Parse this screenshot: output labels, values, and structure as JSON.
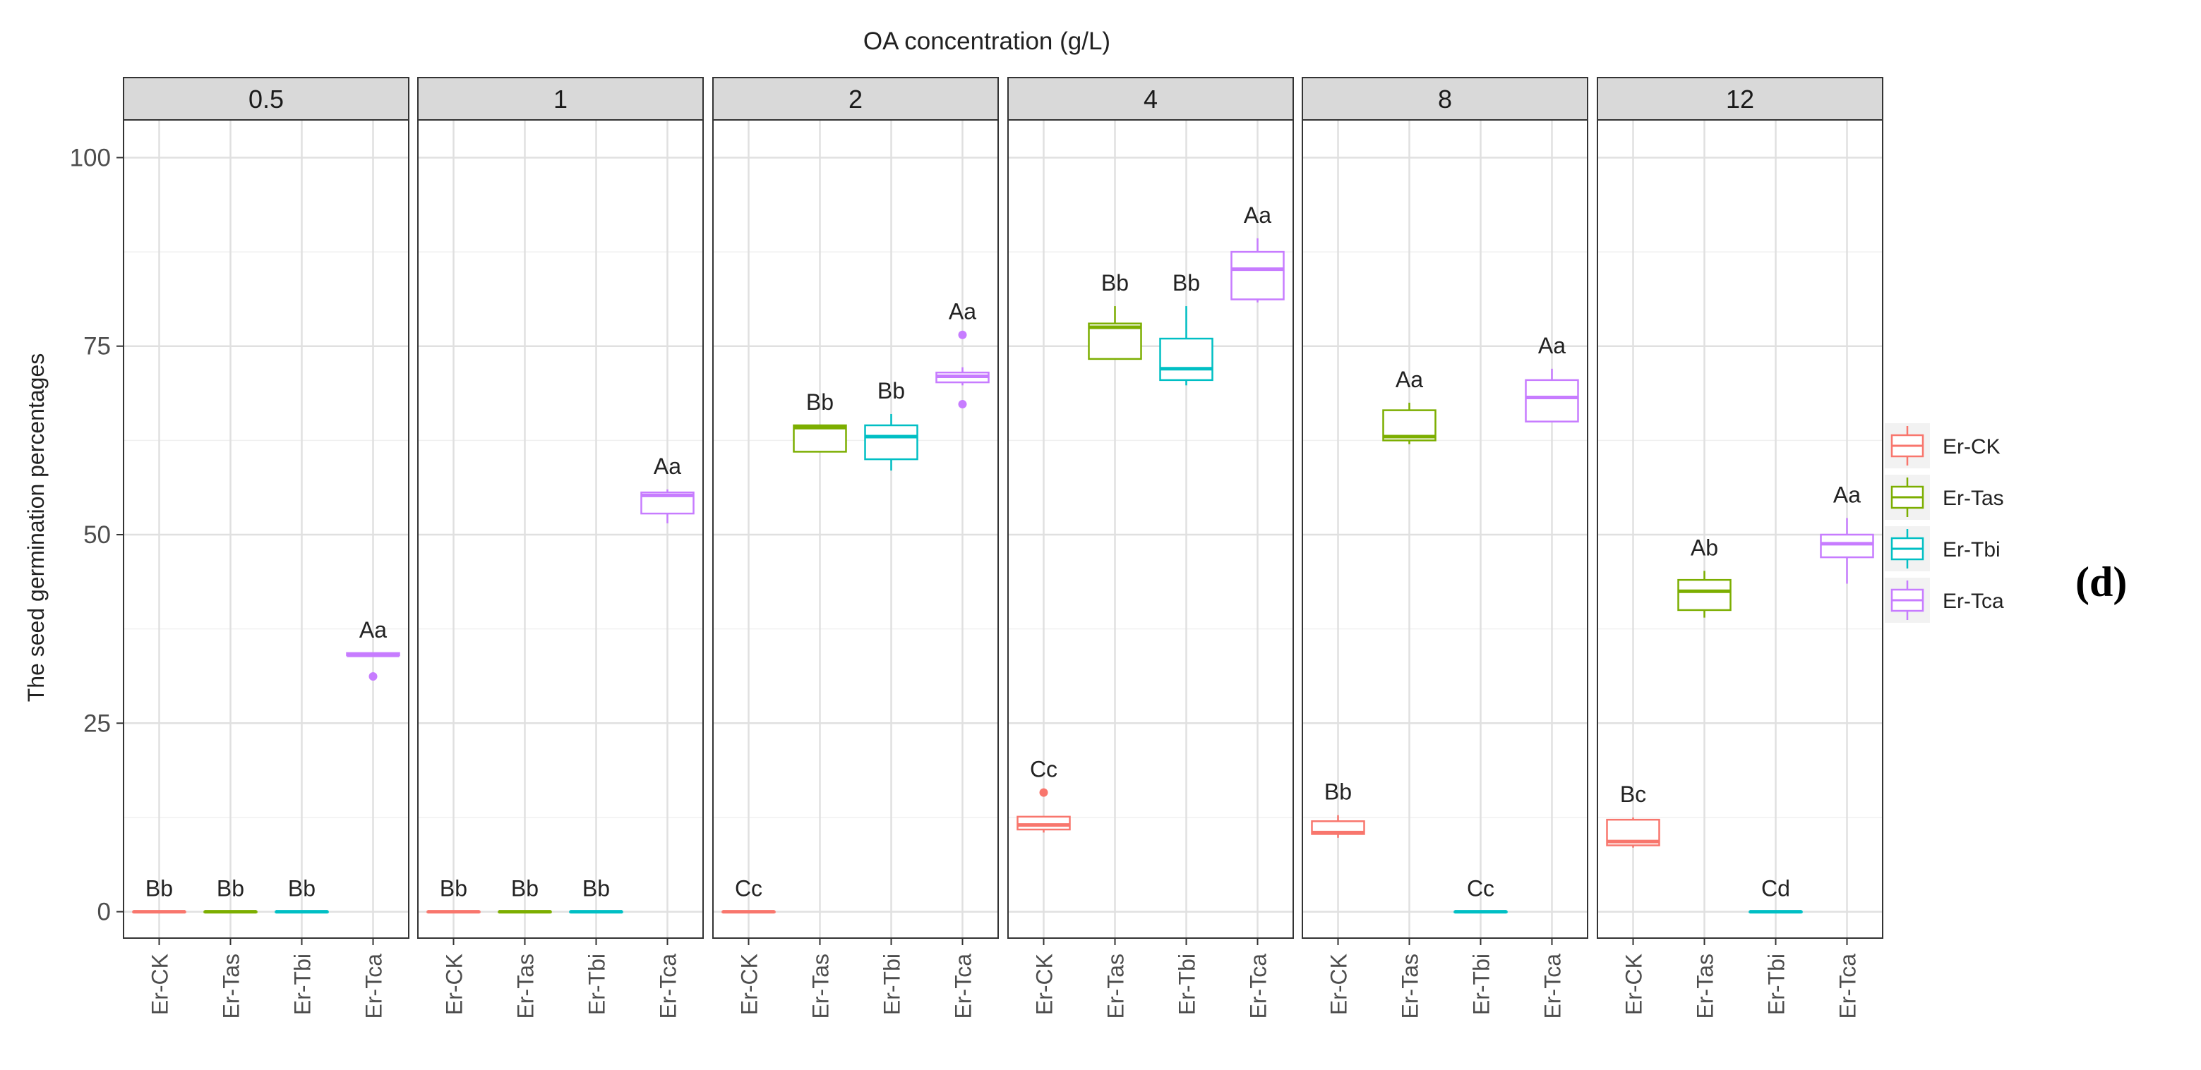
{
  "chart_data": {
    "type": "boxplot",
    "title": "OA concentration (g/L)",
    "ylabel": "The seed germination percentages",
    "xlabel": "",
    "ylim": [
      -3.5,
      105
    ],
    "yticks": [
      0,
      25,
      50,
      75,
      100
    ],
    "panel_label": "(d)",
    "groups": [
      "Er-CK",
      "Er-Tas",
      "Er-Tbi",
      "Er-Tca"
    ],
    "colors": {
      "Er-CK": "#F8766D",
      "Er-Tas": "#7CAE00",
      "Er-Tbi": "#00BFC4",
      "Er-Tca": "#C77CFF"
    },
    "legend": {
      "position": "right",
      "entries": [
        "Er-CK",
        "Er-Tas",
        "Er-Tbi",
        "Er-Tca"
      ]
    },
    "facets": [
      {
        "label": "0.5",
        "boxes": [
          {
            "group": "Er-CK",
            "min": 0,
            "q1": 0,
            "median": 0,
            "q3": 0,
            "max": 0,
            "outliers": [],
            "letter": "Bb"
          },
          {
            "group": "Er-Tas",
            "min": 0,
            "q1": 0,
            "median": 0,
            "q3": 0,
            "max": 0,
            "outliers": [],
            "letter": "Bb"
          },
          {
            "group": "Er-Tbi",
            "min": 0,
            "q1": 0,
            "median": 0,
            "q3": 0,
            "max": 0,
            "outliers": [],
            "letter": "Bb"
          },
          {
            "group": "Er-Tca",
            "min": 34,
            "q1": 34,
            "median": 34,
            "q3": 34.3,
            "max": 34.3,
            "outliers": [
              31.2
            ],
            "letter": "Aa"
          }
        ]
      },
      {
        "label": "1",
        "boxes": [
          {
            "group": "Er-CK",
            "min": 0,
            "q1": 0,
            "median": 0,
            "q3": 0,
            "max": 0,
            "outliers": [],
            "letter": "Bb"
          },
          {
            "group": "Er-Tas",
            "min": 0,
            "q1": 0,
            "median": 0,
            "q3": 0,
            "max": 0,
            "outliers": [],
            "letter": "Bb"
          },
          {
            "group": "Er-Tbi",
            "min": 0,
            "q1": 0,
            "median": 0,
            "q3": 0,
            "max": 0,
            "outliers": [],
            "letter": "Bb"
          },
          {
            "group": "Er-Tca",
            "min": 51.5,
            "q1": 52.8,
            "median": 55.2,
            "q3": 55.6,
            "max": 56,
            "outliers": [],
            "letter": "Aa"
          }
        ]
      },
      {
        "label": "2",
        "boxes": [
          {
            "group": "Er-CK",
            "min": 0,
            "q1": 0,
            "median": 0,
            "q3": 0,
            "max": 0,
            "outliers": [],
            "letter": "Cc"
          },
          {
            "group": "Er-Tas",
            "min": 61,
            "q1": 61,
            "median": 64.2,
            "q3": 64.5,
            "max": 64.5,
            "outliers": [],
            "letter": "Bb"
          },
          {
            "group": "Er-Tbi",
            "min": 58.5,
            "q1": 60,
            "median": 63,
            "q3": 64.5,
            "max": 66,
            "outliers": [],
            "letter": "Bb"
          },
          {
            "group": "Er-Tca",
            "min": 69.8,
            "q1": 70.2,
            "median": 71,
            "q3": 71.5,
            "max": 72.2,
            "outliers": [
              67.3,
              76.5
            ],
            "letter": "Aa"
          }
        ]
      },
      {
        "label": "4",
        "boxes": [
          {
            "group": "Er-CK",
            "min": 10.5,
            "q1": 10.9,
            "median": 11.5,
            "q3": 12.6,
            "max": 12.6,
            "outliers": [
              15.8
            ],
            "letter": "Cc"
          },
          {
            "group": "Er-Tas",
            "min": 73.3,
            "q1": 73.3,
            "median": 77.5,
            "q3": 78,
            "max": 80.3,
            "outliers": [],
            "letter": "Bb"
          },
          {
            "group": "Er-Tbi",
            "min": 69.8,
            "q1": 70.5,
            "median": 72,
            "q3": 76,
            "max": 80.3,
            "outliers": [],
            "letter": "Bb"
          },
          {
            "group": "Er-Tca",
            "min": 80.8,
            "q1": 81.2,
            "median": 85.2,
            "q3": 87.5,
            "max": 89.3,
            "outliers": [],
            "letter": "Aa"
          }
        ]
      },
      {
        "label": "8",
        "boxes": [
          {
            "group": "Er-CK",
            "min": 9.8,
            "q1": 10.3,
            "median": 10.5,
            "q3": 12,
            "max": 12.8,
            "outliers": [],
            "letter": "Bb"
          },
          {
            "group": "Er-Tas",
            "min": 62,
            "q1": 62.5,
            "median": 63,
            "q3": 66.5,
            "max": 67.5,
            "outliers": [],
            "letter": "Aa"
          },
          {
            "group": "Er-Tbi",
            "min": 0,
            "q1": 0,
            "median": 0,
            "q3": 0,
            "max": 0,
            "outliers": [],
            "letter": "Cc"
          },
          {
            "group": "Er-Tca",
            "min": 65,
            "q1": 65,
            "median": 68.2,
            "q3": 70.5,
            "max": 72,
            "outliers": [],
            "letter": "Aa"
          }
        ]
      },
      {
        "label": "12",
        "boxes": [
          {
            "group": "Er-CK",
            "min": 8.5,
            "q1": 8.8,
            "median": 9.3,
            "q3": 12.2,
            "max": 12.5,
            "outliers": [],
            "letter": "Bc"
          },
          {
            "group": "Er-Tas",
            "min": 39,
            "q1": 40,
            "median": 42.5,
            "q3": 44,
            "max": 45.2,
            "outliers": [],
            "letter": "Ab"
          },
          {
            "group": "Er-Tbi",
            "min": 0,
            "q1": 0,
            "median": 0,
            "q3": 0,
            "max": 0,
            "outliers": [],
            "letter": "Cd"
          },
          {
            "group": "Er-Tca",
            "min": 43.5,
            "q1": 47,
            "median": 48.8,
            "q3": 50,
            "max": 52.2,
            "outliers": [],
            "letter": "Aa"
          }
        ]
      }
    ]
  }
}
